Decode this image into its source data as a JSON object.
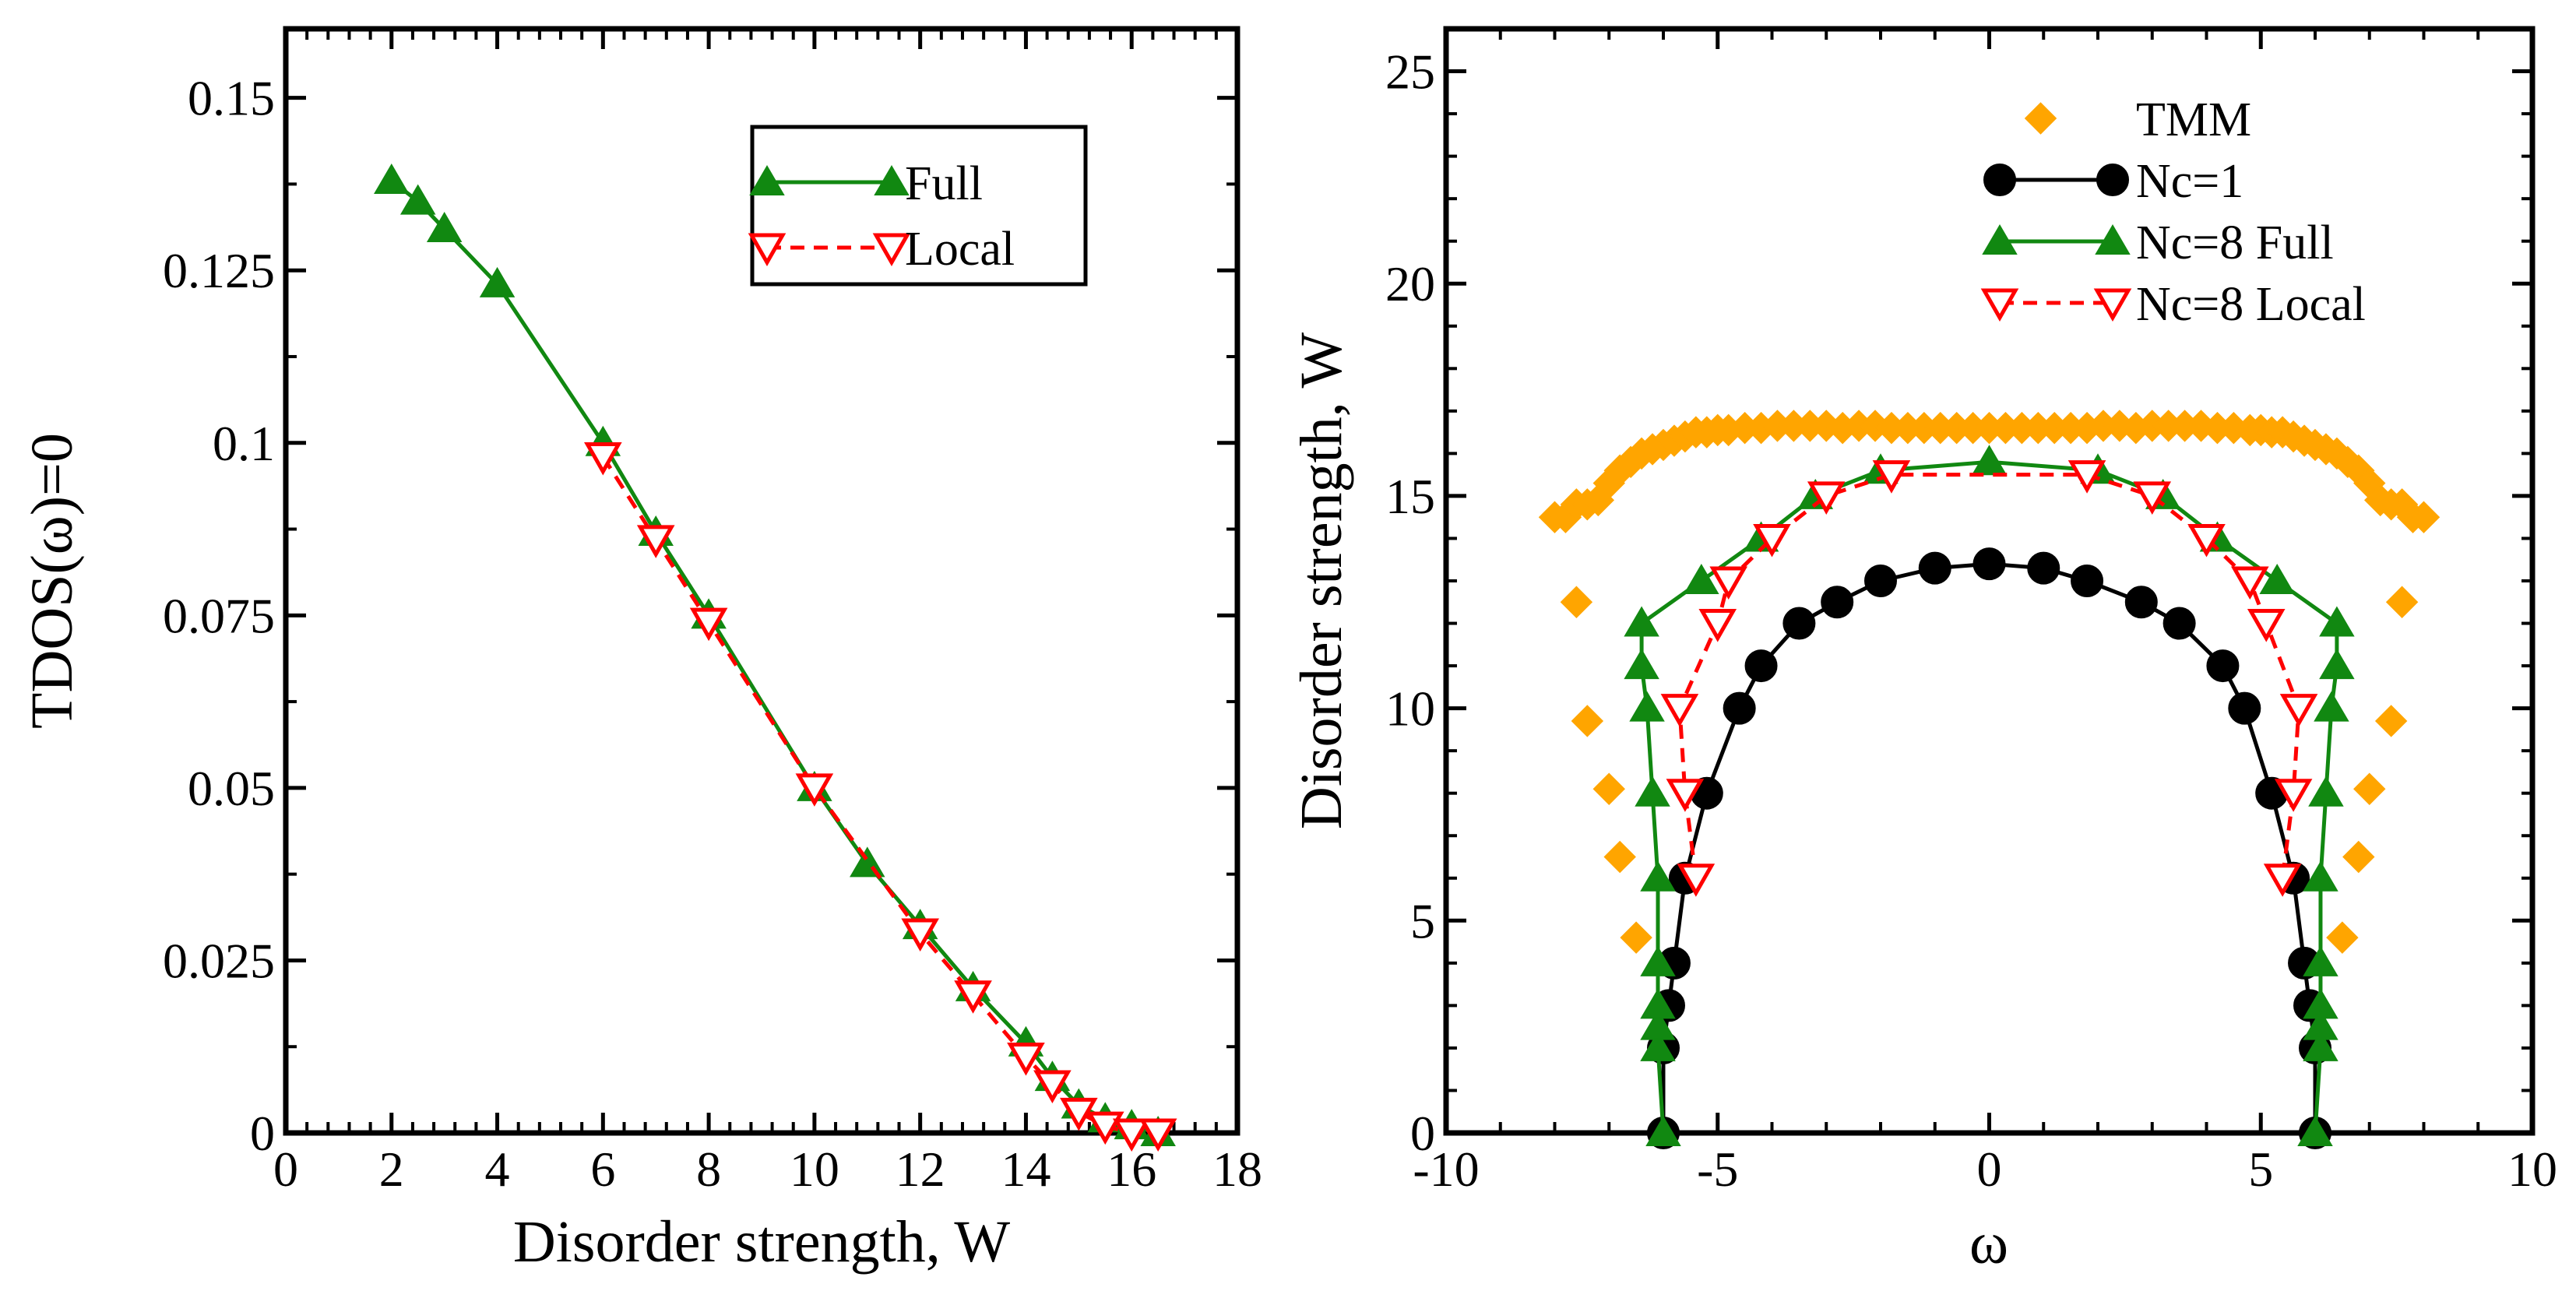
{
  "chart_data": [
    {
      "type": "line",
      "title": "",
      "xlabel": "Disorder strength, W",
      "ylabel": "TDOS(ω)=0",
      "xlim": [
        0,
        18
      ],
      "ylim": [
        0,
        0.16
      ],
      "xticks": [
        0,
        2,
        4,
        6,
        8,
        10,
        12,
        14,
        16,
        18
      ],
      "xtick_labels": [
        "0",
        "2",
        "4",
        "6",
        "8",
        "10",
        "12",
        "14",
        "16",
        "18"
      ],
      "yticks": [
        0,
        0.025,
        0.05,
        0.075,
        0.1,
        0.125,
        0.15
      ],
      "ytick_labels": [
        "0",
        "0.025",
        "0.05",
        "0.075",
        "0.1",
        "0.125",
        "0.15"
      ],
      "legend_position": "top-right",
      "series": [
        {
          "name": "Full",
          "color": "#118811",
          "marker": "triangle-up",
          "line": "solid",
          "points": [
            [
              2,
              0.138
            ],
            [
              2.5,
              0.135
            ],
            [
              3,
              0.131
            ],
            [
              4,
              0.123
            ],
            [
              6,
              0.1
            ],
            [
              7,
              0.087
            ],
            [
              8,
              0.075
            ],
            [
              10,
              0.05
            ],
            [
              11,
              0.039
            ],
            [
              12,
              0.03
            ],
            [
              13,
              0.021
            ],
            [
              14,
              0.013
            ],
            [
              14.5,
              0.008
            ],
            [
              15,
              0.004
            ],
            [
              15.5,
              0.002
            ],
            [
              16,
              0.001
            ],
            [
              16.5,
              0.0
            ]
          ]
        },
        {
          "name": "Local",
          "color": "#ff0000",
          "marker": "triangle-down-open",
          "line": "dashed",
          "points": [
            [
              6,
              0.098
            ],
            [
              7,
              0.086
            ],
            [
              8,
              0.074
            ],
            [
              10,
              0.05
            ],
            [
              12,
              0.029
            ],
            [
              13,
              0.02
            ],
            [
              14,
              0.011
            ],
            [
              14.5,
              0.007
            ],
            [
              15,
              0.003
            ],
            [
              15.5,
              0.001
            ],
            [
              16,
              0.0
            ],
            [
              16.5,
              0.0
            ]
          ]
        }
      ]
    },
    {
      "type": "line",
      "title": "",
      "xlabel": "ω",
      "ylabel": "Disorder strength, W",
      "xlim": [
        -10,
        10
      ],
      "ylim": [
        0,
        26
      ],
      "xticks": [
        -10,
        -5,
        0,
        5,
        10
      ],
      "xtick_labels": [
        "-10",
        "-5",
        "0",
        "5",
        "10"
      ],
      "yticks": [
        0,
        5,
        10,
        15,
        20,
        25
      ],
      "ytick_labels": [
        "0",
        "5",
        "10",
        "15",
        "20",
        "25"
      ],
      "legend_position": "top-right",
      "series": [
        {
          "name": "TMM",
          "color": "#ffa500",
          "marker": "diamond",
          "line": "none",
          "points": [
            [
              -8,
              14.5
            ],
            [
              -7.8,
              14.5
            ],
            [
              -7.6,
              14.8
            ],
            [
              -7.4,
              14.8
            ],
            [
              -7.2,
              14.9
            ],
            [
              -7,
              15.3
            ],
            [
              -6.8,
              15.6
            ],
            [
              -6.6,
              15.8
            ],
            [
              -6.4,
              16
            ],
            [
              -6.2,
              16.1
            ],
            [
              -6,
              16.2
            ],
            [
              -5.8,
              16.3
            ],
            [
              -5.6,
              16.4
            ],
            [
              -5.4,
              16.5
            ],
            [
              -5.2,
              16.5
            ],
            [
              -5,
              16.55
            ],
            [
              -4.8,
              16.55
            ],
            [
              -4.5,
              16.6
            ],
            [
              -4.2,
              16.6
            ],
            [
              -3.9,
              16.65
            ],
            [
              -3.6,
              16.65
            ],
            [
              -3.3,
              16.65
            ],
            [
              -3,
              16.65
            ],
            [
              -2.7,
              16.6
            ],
            [
              -2.4,
              16.65
            ],
            [
              -2.1,
              16.65
            ],
            [
              -1.8,
              16.6
            ],
            [
              -1.5,
              16.6
            ],
            [
              -1.2,
              16.6
            ],
            [
              -0.9,
              16.6
            ],
            [
              -0.6,
              16.6
            ],
            [
              -0.3,
              16.6
            ],
            [
              0,
              16.6
            ],
            [
              0.3,
              16.6
            ],
            [
              0.6,
              16.6
            ],
            [
              0.9,
              16.6
            ],
            [
              1.2,
              16.6
            ],
            [
              1.5,
              16.6
            ],
            [
              1.8,
              16.6
            ],
            [
              2.1,
              16.65
            ],
            [
              2.4,
              16.65
            ],
            [
              2.7,
              16.6
            ],
            [
              3,
              16.65
            ],
            [
              3.3,
              16.65
            ],
            [
              3.6,
              16.65
            ],
            [
              3.9,
              16.65
            ],
            [
              4.2,
              16.6
            ],
            [
              4.5,
              16.6
            ],
            [
              4.8,
              16.55
            ],
            [
              5,
              16.55
            ],
            [
              5.2,
              16.5
            ],
            [
              5.4,
              16.5
            ],
            [
              5.6,
              16.4
            ],
            [
              5.8,
              16.3
            ],
            [
              6,
              16.2
            ],
            [
              6.2,
              16.1
            ],
            [
              6.4,
              16
            ],
            [
              6.6,
              15.8
            ],
            [
              6.8,
              15.6
            ],
            [
              7,
              15.3
            ],
            [
              7.2,
              14.9
            ],
            [
              7.4,
              14.8
            ],
            [
              7.6,
              14.8
            ],
            [
              7.8,
              14.5
            ],
            [
              8,
              14.5
            ],
            [
              -7.6,
              12.5
            ],
            [
              7.6,
              12.5
            ],
            [
              -7.4,
              9.7
            ],
            [
              7.4,
              9.7
            ],
            [
              -7,
              8.1
            ],
            [
              7,
              8.1
            ],
            [
              -6.8,
              6.5
            ],
            [
              6.8,
              6.5
            ],
            [
              -6.5,
              4.6
            ],
            [
              6.5,
              4.6
            ]
          ]
        },
        {
          "name": "Nc=1",
          "color": "#000000",
          "marker": "circle",
          "line": "solid",
          "points": [
            [
              -6,
              0
            ],
            [
              -6,
              2
            ],
            [
              -5.9,
              3
            ],
            [
              -5.8,
              4
            ],
            [
              -5.6,
              6
            ],
            [
              -5.2,
              8
            ],
            [
              -4.6,
              10
            ],
            [
              -4.2,
              11
            ],
            [
              -3.5,
              12
            ],
            [
              -2.8,
              12.5
            ],
            [
              -2,
              13
            ],
            [
              -1,
              13.3
            ],
            [
              0,
              13.4
            ],
            [
              1,
              13.3
            ],
            [
              1.8,
              13
            ],
            [
              2.8,
              12.5
            ],
            [
              3.5,
              12
            ],
            [
              4.3,
              11
            ],
            [
              4.7,
              10
            ],
            [
              5.2,
              8
            ],
            [
              5.6,
              6
            ],
            [
              5.8,
              4
            ],
            [
              5.9,
              3
            ],
            [
              6,
              2
            ],
            [
              6,
              0
            ]
          ]
        },
        {
          "name": "Nc=8 Full",
          "color": "#118811",
          "marker": "triangle-up",
          "line": "solid",
          "points": [
            [
              -6,
              0
            ],
            [
              -6.1,
              2
            ],
            [
              -6.1,
              2.5
            ],
            [
              -6.1,
              3
            ],
            [
              -6.1,
              4
            ],
            [
              -6.1,
              6
            ],
            [
              -6.2,
              8
            ],
            [
              -6.3,
              10
            ],
            [
              -6.4,
              11
            ],
            [
              -6.4,
              12
            ],
            [
              -5.3,
              13
            ],
            [
              -4.2,
              14
            ],
            [
              -3.2,
              15
            ],
            [
              -2,
              15.6
            ],
            [
              0,
              15.8
            ],
            [
              2,
              15.6
            ],
            [
              3.2,
              15
            ],
            [
              4.2,
              14
            ],
            [
              5.3,
              13
            ],
            [
              6.4,
              12
            ],
            [
              6.4,
              11
            ],
            [
              6.3,
              10
            ],
            [
              6.2,
              8
            ],
            [
              6.1,
              6
            ],
            [
              6.1,
              4
            ],
            [
              6.1,
              3
            ],
            [
              6.1,
              2.5
            ],
            [
              6.1,
              2
            ],
            [
              6,
              0
            ]
          ]
        },
        {
          "name": "Nc=8 Local",
          "color": "#ff0000",
          "marker": "triangle-down-open",
          "line": "dashed",
          "points": [
            [
              -5.4,
              6
            ],
            [
              -5.6,
              8
            ],
            [
              -5.7,
              10
            ],
            [
              -5,
              12
            ],
            [
              -4.8,
              13
            ],
            [
              -4,
              14
            ],
            [
              -3,
              15
            ],
            [
              -1.8,
              15.5
            ],
            [
              1.8,
              15.5
            ],
            [
              3,
              15
            ],
            [
              4,
              14
            ],
            [
              4.8,
              13
            ],
            [
              5.1,
              12
            ],
            [
              5.7,
              10
            ],
            [
              5.6,
              8
            ],
            [
              5.4,
              6
            ]
          ]
        }
      ]
    }
  ]
}
